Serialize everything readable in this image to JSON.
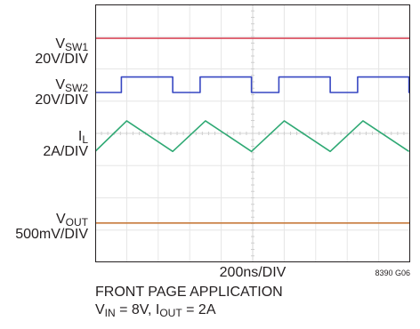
{
  "labels": {
    "sw1_main": "V",
    "sw1_sub": "SW1",
    "sw1_scale": "20V/DIV",
    "sw2_main": "V",
    "sw2_sub": "SW2",
    "sw2_scale": "20V/DIV",
    "il_main": "I",
    "il_sub": "L",
    "il_scale": "2A/DIV",
    "vout_main": "V",
    "vout_sub": "OUT",
    "vout_scale": "500mV/DIV"
  },
  "xaxis_label": "200ns/DIV",
  "figure_id": "8390 G06",
  "caption": {
    "line1": "FRONT PAGE APPLICATION",
    "vin_main": "V",
    "vin_sub": "IN",
    "vin_value": " = 8V, I",
    "iout_sub": "OUT",
    "iout_value": " = 2A"
  },
  "chart_data": {
    "type": "line",
    "grid": true,
    "divisions": {
      "x": 10,
      "y": 8
    },
    "xlabel": "200ns/DIV",
    "series": [
      {
        "name": "VSW1",
        "color": "#d9495a",
        "unit_per_div": "20V/DIV",
        "shape": "flat",
        "level_div": 6.95
      },
      {
        "name": "VSW2",
        "color": "#3747c2",
        "unit_per_div": "20V/DIV",
        "shape": "square",
        "period_div": 2.5,
        "high_div": 5.75,
        "low_div": 5.27,
        "rising_edges_div": [
          0.83,
          3.33,
          5.83,
          8.33
        ],
        "falling_edges_div": [
          2.46,
          4.96,
          7.46,
          9.96
        ],
        "starts_low": true
      },
      {
        "name": "IL",
        "color": "#2fa974",
        "unit_per_div": "2A/DIV",
        "shape": "triangle",
        "peaks_div": [
          1.0,
          3.5,
          6.0,
          8.5
        ],
        "valleys_div": [
          2.46,
          4.96,
          7.46,
          9.96
        ],
        "peak_level_div": 4.39,
        "valley_level_div": 3.44,
        "start_level_div": 3.44
      },
      {
        "name": "VOUT",
        "color": "#c77a3b",
        "unit_per_div": "500mV/DIV",
        "shape": "flat",
        "level_div": 1.22
      }
    ]
  }
}
